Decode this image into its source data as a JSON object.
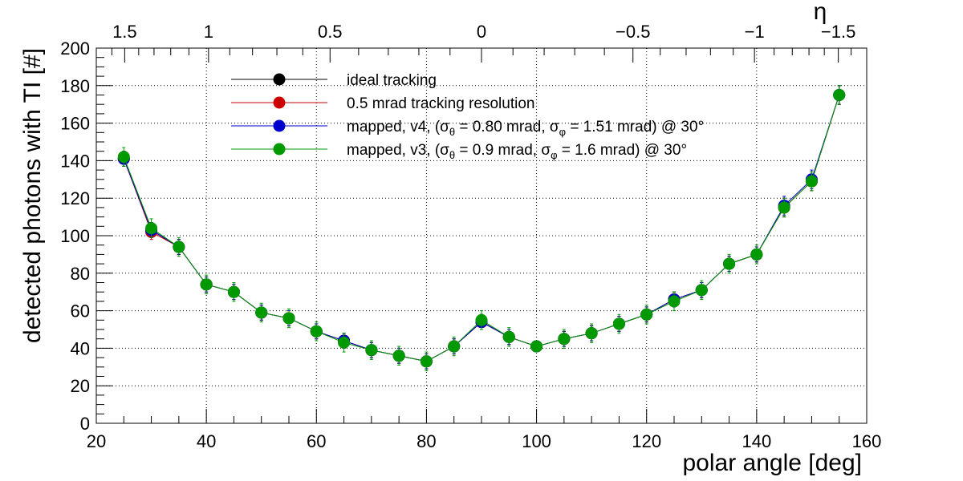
{
  "chart_data": {
    "type": "line",
    "xlabel": "polar angle [deg]",
    "ylabel": "detected photons with TI [#]",
    "top_axis_label": "η",
    "xlim": [
      20,
      160
    ],
    "ylim": [
      0,
      200
    ],
    "x_ticks": [
      "20",
      "40",
      "60",
      "80",
      "100",
      "120",
      "140",
      "160"
    ],
    "y_ticks": [
      "0",
      "20",
      "40",
      "60",
      "80",
      "100",
      "120",
      "140",
      "160",
      "180",
      "200"
    ],
    "top_ticks": [
      {
        "label": "1.5",
        "eta": 1.5
      },
      {
        "label": "1",
        "eta": 1.0
      },
      {
        "label": "0.5",
        "eta": 0.5
      },
      {
        "label": "0",
        "eta": 0.0
      },
      {
        "label": "−0.5",
        "eta": -0.5
      },
      {
        "label": "−1",
        "eta": -1.0
      },
      {
        "label": "−1.5",
        "eta": -1.5
      }
    ],
    "grid": true,
    "legend_position": "top-center",
    "x": [
      25,
      30,
      35,
      40,
      45,
      50,
      55,
      60,
      65,
      70,
      75,
      80,
      85,
      90,
      95,
      100,
      105,
      110,
      115,
      120,
      125,
      130,
      135,
      140,
      145,
      150,
      155
    ],
    "series": [
      {
        "name": "ideal tracking",
        "color": "#000000",
        "values": [
          141,
          103,
          94,
          74,
          70,
          59,
          56,
          49,
          44,
          39,
          36,
          33,
          41,
          54,
          46,
          41,
          45,
          48,
          53,
          58,
          66,
          71,
          85,
          90,
          115,
          129,
          175
        ],
        "errors": [
          4,
          4,
          4,
          4,
          4,
          4,
          4,
          4,
          4,
          4,
          4,
          4,
          4,
          4,
          4,
          2,
          4,
          4,
          4,
          4,
          4,
          4,
          4,
          4,
          5,
          5,
          5
        ]
      },
      {
        "name": "0.5 mrad tracking resolution",
        "color": "#cc0000",
        "values": [
          141,
          102,
          94,
          74,
          70,
          59,
          56,
          49,
          44,
          39,
          36,
          33,
          41,
          54,
          46,
          41,
          45,
          48,
          53,
          58,
          66,
          71,
          85,
          90,
          115,
          129,
          175
        ],
        "errors": [
          4,
          4,
          4,
          4,
          4,
          4,
          4,
          4,
          4,
          4,
          4,
          4,
          4,
          4,
          4,
          2,
          4,
          4,
          4,
          4,
          4,
          4,
          4,
          4,
          5,
          5,
          5
        ]
      },
      {
        "name": "mapped, v4, (σθ = 0.80 mrad, σφ = 1.51 mrad) @ 30°",
        "color": "#0000cc",
        "values": [
          141,
          103,
          94,
          74,
          70,
          59,
          56,
          49,
          44,
          39,
          36,
          33,
          41,
          54,
          46,
          41,
          45,
          48,
          53,
          58,
          66,
          71,
          85,
          90,
          116,
          130,
          175
        ],
        "errors": [
          4,
          4,
          4,
          4,
          4,
          4,
          4,
          4,
          4,
          4,
          4,
          4,
          4,
          4,
          4,
          2,
          4,
          4,
          4,
          4,
          4,
          4,
          4,
          4,
          5,
          5,
          5
        ]
      },
      {
        "name": "mapped, v3, (σθ = 0.9 mrad, σφ = 1.6 mrad) @ 30°",
        "color": "#009900",
        "values": [
          142,
          104,
          94,
          74,
          70,
          59,
          56,
          49,
          43,
          39,
          36,
          33,
          41,
          55,
          46,
          41,
          45,
          48,
          53,
          58,
          65,
          71,
          85,
          90,
          115,
          129,
          175
        ],
        "errors": [
          5,
          5,
          5,
          5,
          5,
          5,
          5,
          5,
          5,
          5,
          5,
          5,
          5,
          5,
          5,
          2,
          5,
          5,
          5,
          5,
          5,
          5,
          5,
          5,
          5,
          5,
          5
        ]
      }
    ],
    "legend": [
      {
        "text": "ideal tracking",
        "color": "#000000"
      },
      {
        "text": "0.5 mrad tracking resolution",
        "color": "#cc0000"
      },
      {
        "text": "mapped, v4, (σ",
        "sub1": "θ",
        "mid": " = 0.80 mrad, σ",
        "sub2": "φ",
        "tail": " = 1.51 mrad) @ 30°",
        "color": "#0000cc"
      },
      {
        "text": "mapped, v3, (σ",
        "sub1": "θ",
        "mid": " = 0.9 mrad, σ",
        "sub2": "φ",
        "tail": " = 1.6 mrad) @ 30°",
        "color": "#009900"
      }
    ]
  }
}
